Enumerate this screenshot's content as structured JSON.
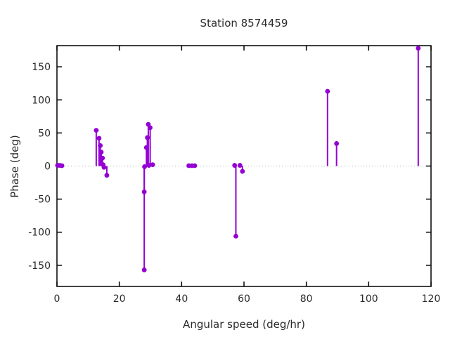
{
  "chart_data": {
    "type": "scatter",
    "style": "impulses-with-points",
    "title": "Station 8574459",
    "xlabel": "Angular speed (deg/hr)",
    "ylabel": "Phase (deg)",
    "xlim": [
      0,
      120
    ],
    "ylim": [
      -182,
      182
    ],
    "xticks": [
      0,
      20,
      40,
      60,
      80,
      100,
      120
    ],
    "yticks": [
      -150,
      -100,
      -50,
      0,
      50,
      100,
      150
    ],
    "grid": "zero-line-dotted-only",
    "legend": "none",
    "zero_line_y": 0,
    "point_color": "#9400D3",
    "axis_color": "#000000",
    "text_color": "#2a2a2a",
    "zero_line_color": "#a8a8a8",
    "background_color": "#ffffff",
    "points": [
      [
        0.2,
        1
      ],
      [
        0.9,
        1
      ],
      [
        1.6,
        0.5
      ],
      [
        12.6,
        54
      ],
      [
        13.5,
        42
      ],
      [
        13.9,
        31
      ],
      [
        14.2,
        21
      ],
      [
        14.6,
        12
      ],
      [
        14.8,
        2
      ],
      [
        15.1,
        -2
      ],
      [
        16.0,
        -14
      ],
      [
        28.0,
        -157
      ],
      [
        28.0,
        -39
      ],
      [
        28.1,
        -1
      ],
      [
        28.7,
        28
      ],
      [
        29.0,
        43
      ],
      [
        29.3,
        63
      ],
      [
        29.9,
        58
      ],
      [
        29.5,
        1
      ],
      [
        30.7,
        2
      ],
      [
        42.3,
        0.5
      ],
      [
        43.3,
        0.5
      ],
      [
        44.2,
        0.5
      ],
      [
        57.0,
        1
      ],
      [
        57.4,
        -106
      ],
      [
        58.7,
        1
      ],
      [
        59.5,
        -8
      ],
      [
        86.8,
        113
      ],
      [
        89.7,
        34
      ],
      [
        115.9,
        178
      ]
    ]
  }
}
